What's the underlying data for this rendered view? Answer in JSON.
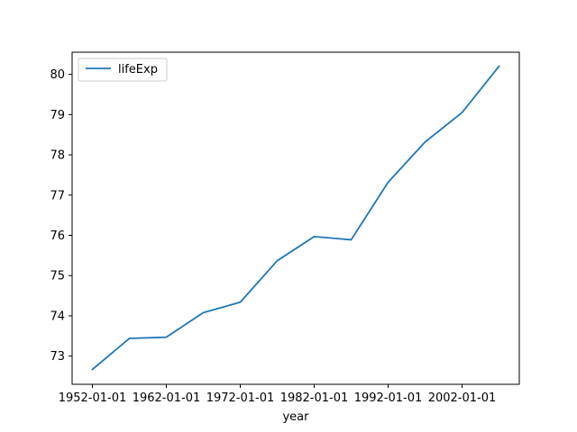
{
  "chart_data": {
    "type": "line",
    "title": "",
    "xlabel": "year",
    "ylabel": "",
    "x": [
      "1952-01-01",
      "1957-01-01",
      "1962-01-01",
      "1967-01-01",
      "1972-01-01",
      "1977-01-01",
      "1982-01-01",
      "1987-01-01",
      "1992-01-01",
      "1997-01-01",
      "2002-01-01",
      "2007-01-01"
    ],
    "x_ticks": [
      "1952-01-01",
      "1962-01-01",
      "1972-01-01",
      "1982-01-01",
      "1992-01-01",
      "2002-01-01"
    ],
    "y_ticks": [
      73,
      74,
      75,
      76,
      77,
      78,
      79,
      80
    ],
    "ylim": [
      72.3,
      80.55
    ],
    "grid": false,
    "legend": "upper-left",
    "series": [
      {
        "name": "lifeExp",
        "color": "#1f77b4",
        "values": [
          72.67,
          73.44,
          73.47,
          74.08,
          74.34,
          75.37,
          75.97,
          75.89,
          77.32,
          78.32,
          79.05,
          80.2
        ]
      }
    ]
  }
}
